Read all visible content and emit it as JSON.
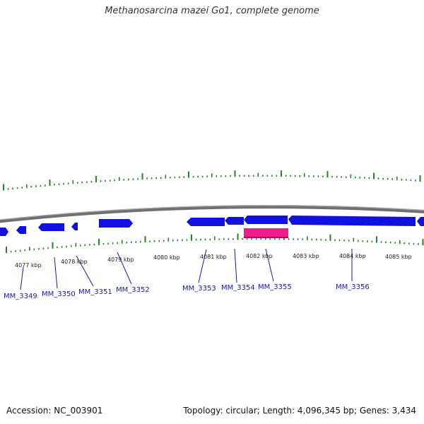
{
  "title": "Methanosarcina mazei Go1, complete genome",
  "footer": {
    "accession": "Accession: NC_003901",
    "stats": "Topology: circular; Length: 4,096,345 bp; Genes: 3,434"
  },
  "colors": {
    "gene_forward": "#1010e0",
    "gene_reverse": "#1010e0",
    "feature_highlight": "#ee1c8c",
    "tick": "#1f8a1f",
    "backbone": "#8a8a8a",
    "label": "#1a1aa8"
  },
  "tick_labels": [
    "4077 kbp",
    "4078 kbp",
    "4079 kbp",
    "4080 kbp",
    "4081 kbp",
    "4082 kbp",
    "4083 kbp",
    "4084 kbp",
    "4085 kbp"
  ],
  "gene_labels": [
    "MM_3349",
    "MM_3350",
    "MM_3351",
    "MM_3352",
    "MM_3353",
    "MM_3354",
    "MM_3355",
    "MM_3356"
  ]
}
